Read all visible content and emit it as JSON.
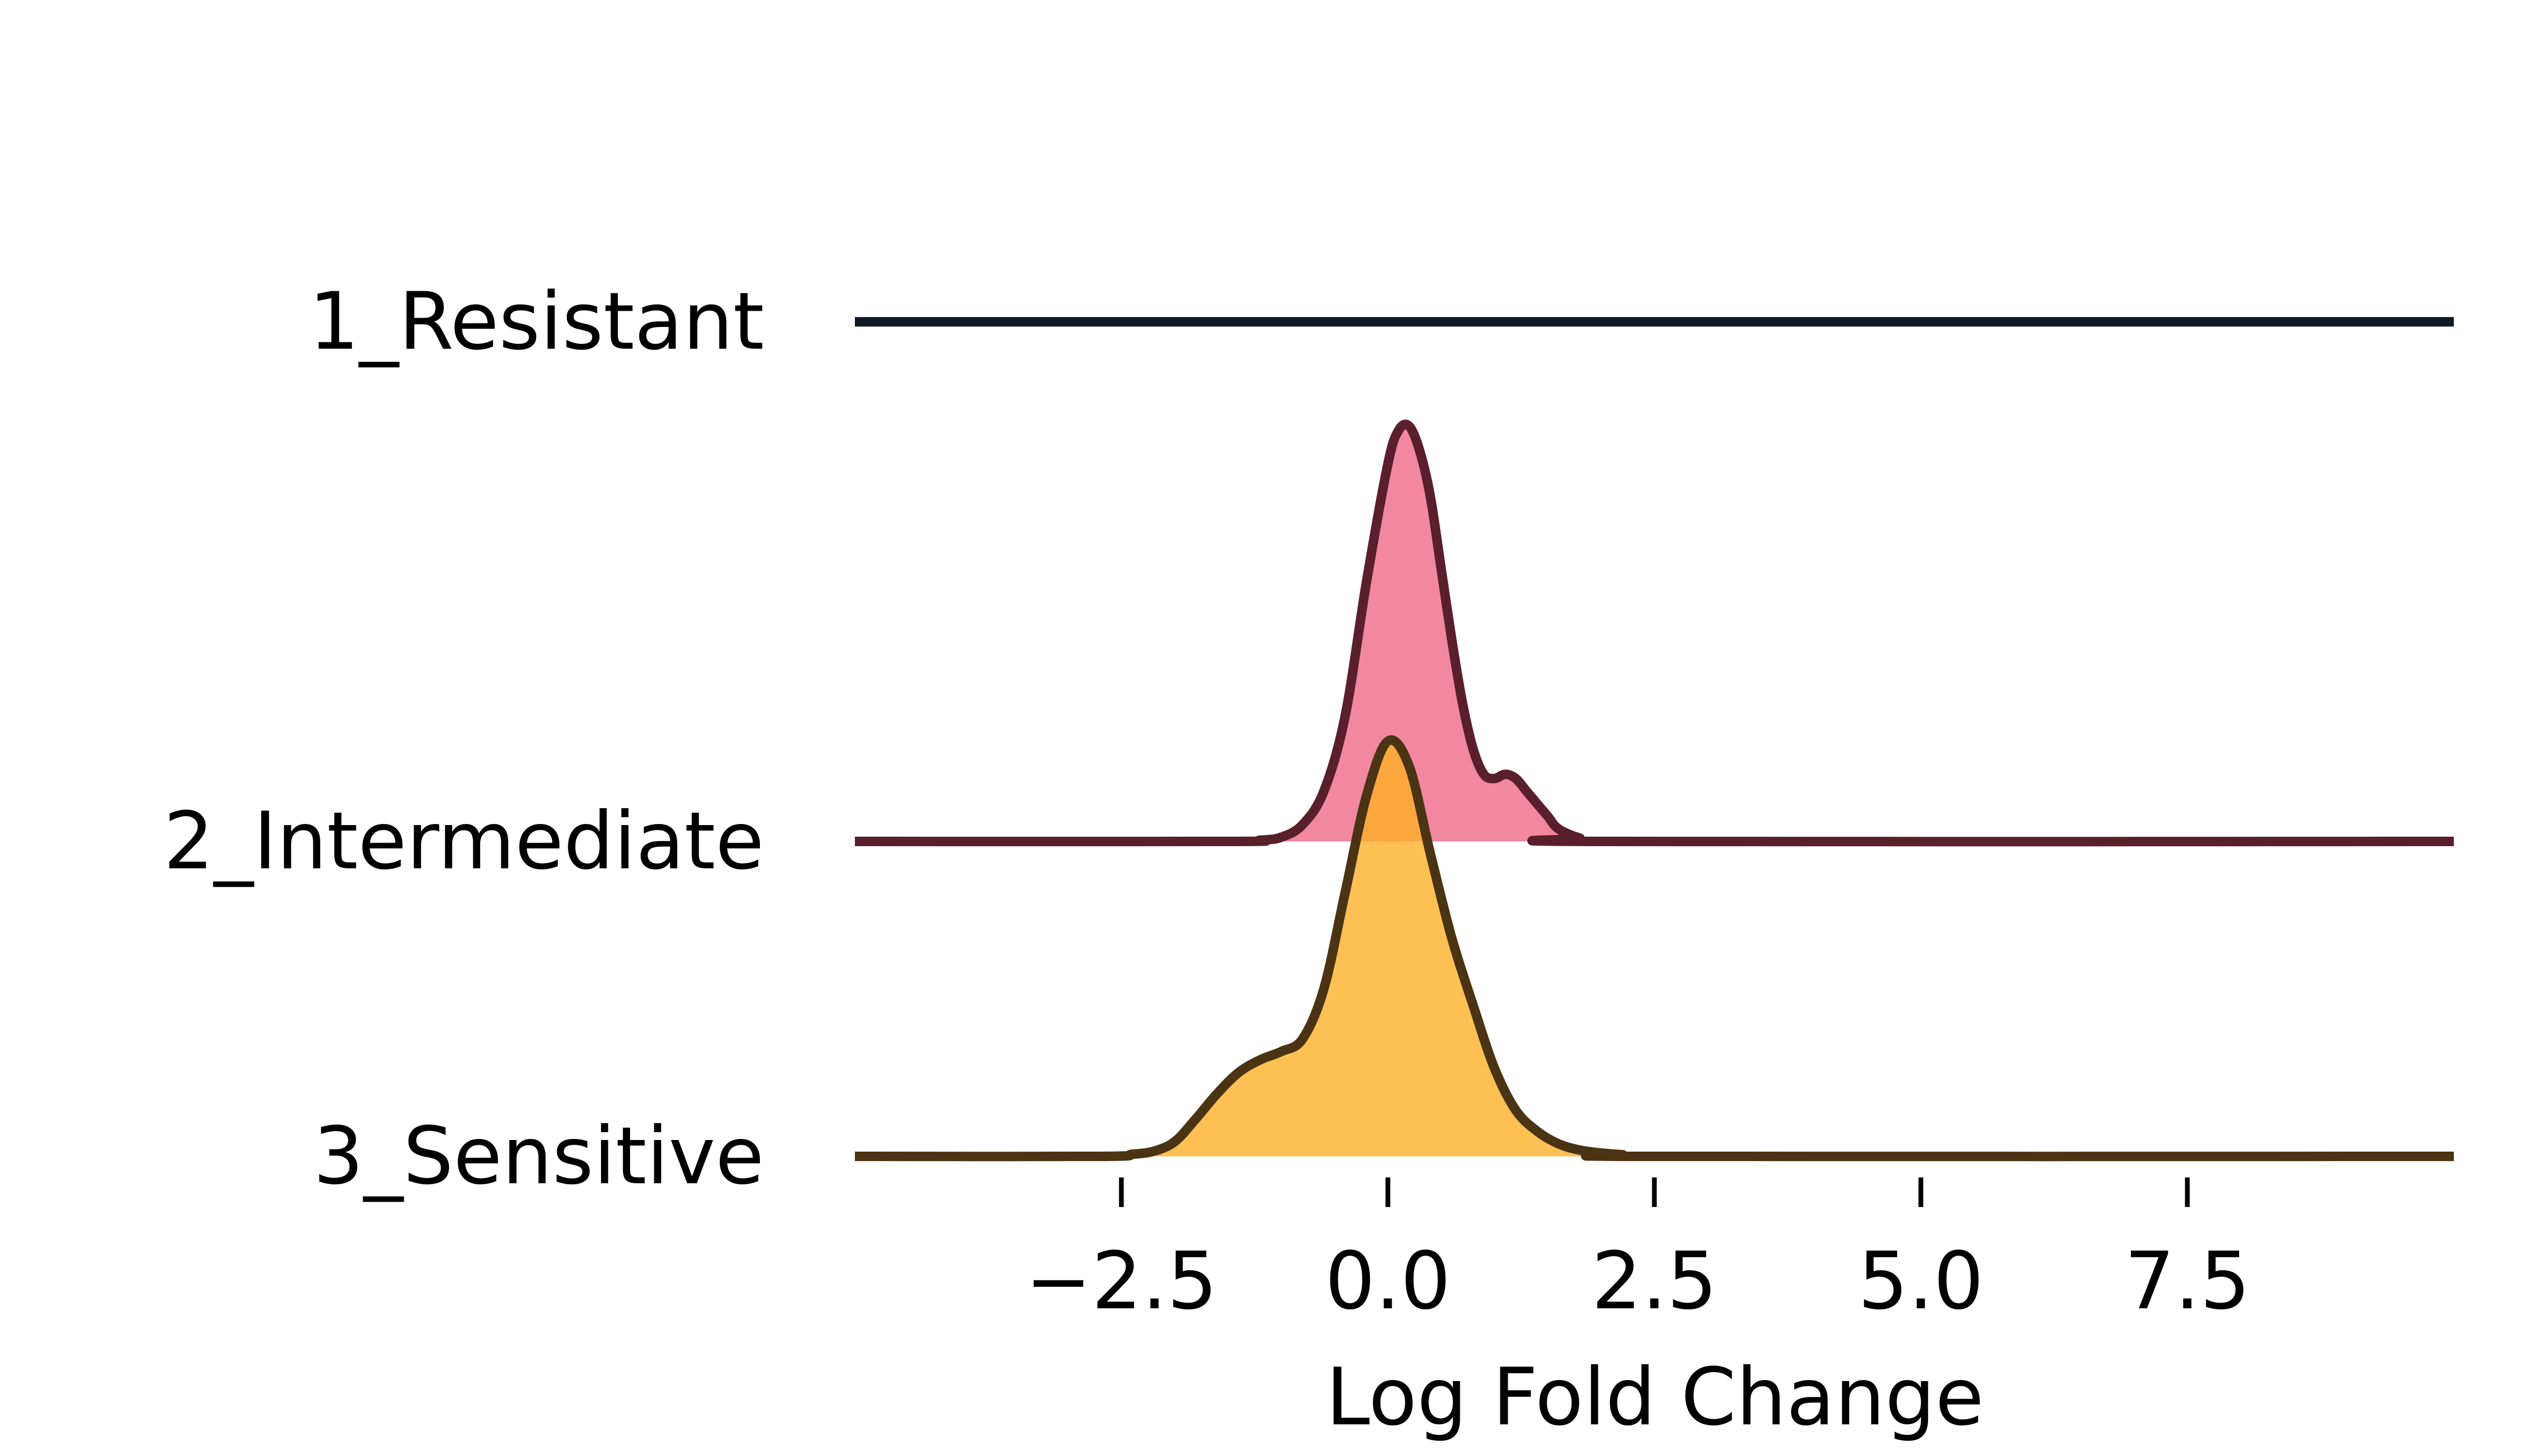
{
  "chart_data": {
    "type": "ridgeline",
    "xlabel": "Log Fold Change",
    "ylabel": "",
    "title": "",
    "xlim": [
      -5,
      10
    ],
    "xticks": [
      -2.5,
      0.0,
      2.5,
      5.0,
      7.5
    ],
    "xtick_labels": [
      "−2.5",
      "0.0",
      "2.5",
      "5.0",
      "7.5"
    ],
    "grid": false,
    "legend": "none",
    "series": [
      {
        "name": "1_Resistant",
        "color": "#0d1b26",
        "fill": null,
        "x": [],
        "density": []
      },
      {
        "name": "2_Intermediate",
        "color": "#5a1f2c",
        "fill": "#ee6585",
        "x": [
          -5.0,
          -1.5,
          -1.2,
          -1.0,
          -0.8,
          -0.6,
          -0.4,
          -0.2,
          0.0,
          0.1,
          0.2,
          0.3,
          0.4,
          0.5,
          0.6,
          0.7,
          0.8,
          0.9,
          1.0,
          1.1,
          1.2,
          1.3,
          1.4,
          1.5,
          1.6,
          1.8,
          2.0,
          10.0
        ],
        "density": [
          0.0,
          0.0,
          0.003,
          0.01,
          0.04,
          0.12,
          0.3,
          0.62,
          0.9,
          0.98,
          0.99,
          0.93,
          0.82,
          0.65,
          0.48,
          0.33,
          0.22,
          0.16,
          0.15,
          0.16,
          0.15,
          0.12,
          0.09,
          0.06,
          0.03,
          0.008,
          0.0,
          0.0
        ]
      },
      {
        "name": "3_Sensitive",
        "color": "#4a3413",
        "fill": "#ffae22",
        "x": [
          -5.0,
          -2.7,
          -2.4,
          -2.2,
          -2.0,
          -1.8,
          -1.6,
          -1.4,
          -1.2,
          -1.0,
          -0.8,
          -0.6,
          -0.4,
          -0.2,
          0.0,
          0.2,
          0.4,
          0.6,
          0.8,
          1.0,
          1.2,
          1.4,
          1.6,
          1.8,
          2.0,
          2.2,
          2.5,
          10.0
        ],
        "density": [
          0.0,
          0.0,
          0.005,
          0.012,
          0.035,
          0.09,
          0.15,
          0.2,
          0.23,
          0.25,
          0.28,
          0.4,
          0.63,
          0.86,
          0.99,
          0.93,
          0.72,
          0.52,
          0.36,
          0.21,
          0.11,
          0.06,
          0.03,
          0.015,
          0.008,
          0.004,
          0.0,
          0.0
        ]
      }
    ]
  }
}
